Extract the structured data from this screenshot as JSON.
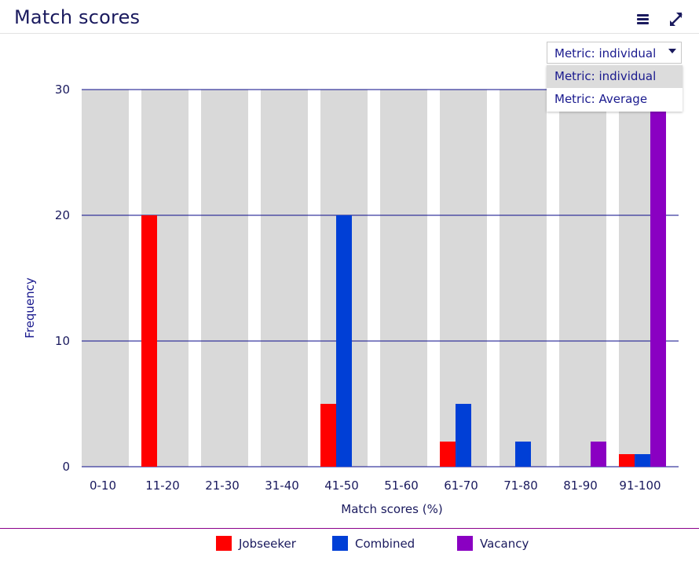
{
  "header": {
    "title": "Match scores"
  },
  "icons": {
    "menu": "hamburger-menu-icon",
    "expand": "expand-arrows-icon"
  },
  "dropdown": {
    "value": "Metric: individual",
    "options": [
      "Metric: individual",
      "Metric: Average"
    ],
    "selected_index": 0
  },
  "colors": {
    "Jobseeker": "#ff0000",
    "Combined": "#003fd6",
    "Vacancy": "#8a00c2",
    "band": "#d9d9d9",
    "gridline": "#0a0a8a",
    "text": "#1a1a5e"
  },
  "chart_data": {
    "type": "bar",
    "title": "Match scores",
    "xlabel": "Match scores (%)",
    "ylabel": "Frequency",
    "ylim": [
      0,
      30
    ],
    "yticks": [
      0,
      10,
      20,
      30
    ],
    "grid": true,
    "legend_position": "bottom",
    "categories": [
      "0-10",
      "11-20",
      "21-30",
      "31-40",
      "41-50",
      "51-60",
      "61-70",
      "71-80",
      "81-90",
      "91-100"
    ],
    "series": [
      {
        "name": "Jobseeker",
        "values": [
          0,
          20,
          0,
          0,
          5,
          0,
          2,
          0,
          0,
          1
        ]
      },
      {
        "name": "Combined",
        "values": [
          0,
          0,
          0,
          0,
          20,
          0,
          5,
          2,
          0,
          1
        ]
      },
      {
        "name": "Vacancy",
        "values": [
          0,
          0,
          0,
          0,
          0,
          0,
          0,
          0,
          2,
          30
        ]
      }
    ]
  }
}
